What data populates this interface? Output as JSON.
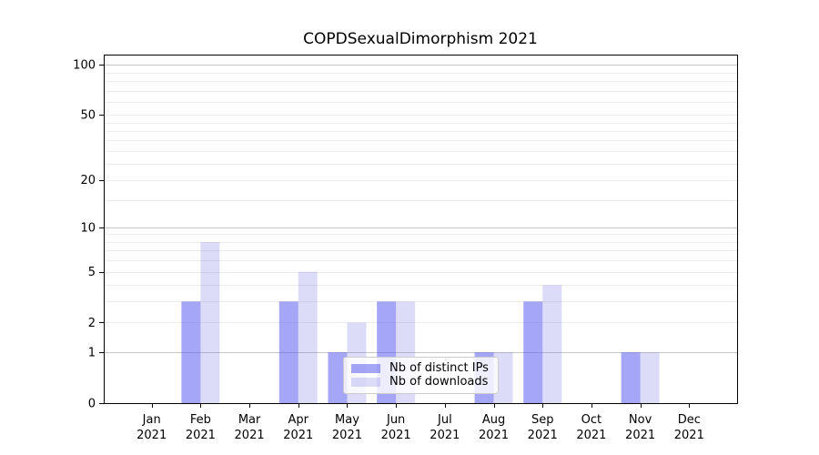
{
  "chart_data": {
    "type": "bar",
    "title": "COPDSexualDimorphism 2021",
    "x": {
      "categories": [
        "Jan",
        "Feb",
        "Mar",
        "Apr",
        "May",
        "Jun",
        "Jul",
        "Aug",
        "Sep",
        "Oct",
        "Nov",
        "Dec"
      ],
      "year_label": "2021"
    },
    "series": [
      {
        "name": "Nb of distinct IPs",
        "values": [
          0,
          3,
          0,
          3,
          1,
          3,
          0,
          1,
          3,
          0,
          1,
          0
        ],
        "fill": "rgba(84,84,238,0.52)",
        "approx_hex_on_white": "#a8a8f7"
      },
      {
        "name": "Nb of downloads",
        "values": [
          0,
          8,
          0,
          5,
          2,
          3,
          0,
          1,
          4,
          0,
          1,
          0
        ],
        "fill": "rgba(107,107,224,0.24)",
        "approx_hex_on_white": "#d9d9f9"
      }
    ],
    "y_axis": {
      "scale": "log1p",
      "ymax": 115,
      "ticks": [
        0,
        1,
        2,
        5,
        10,
        20,
        50,
        100
      ],
      "major_gridlines": [
        1,
        10,
        100
      ],
      "minor_gridlines": [
        2,
        3,
        4,
        5,
        6,
        7,
        8,
        9,
        15,
        20,
        25,
        30,
        35,
        40,
        45,
        50,
        60,
        70,
        80,
        90
      ]
    },
    "legend": {
      "position": "lower-center",
      "labels": [
        "Nb of distinct IPs",
        "Nb of downloads"
      ]
    },
    "grid": true
  },
  "colors": {
    "background": "#ffffff",
    "axis": "#000000",
    "tick_label": "#000000",
    "major_gridline": "#c6c6c6",
    "minor_gridline": "#ececec",
    "legend_border": "#cccccc"
  }
}
